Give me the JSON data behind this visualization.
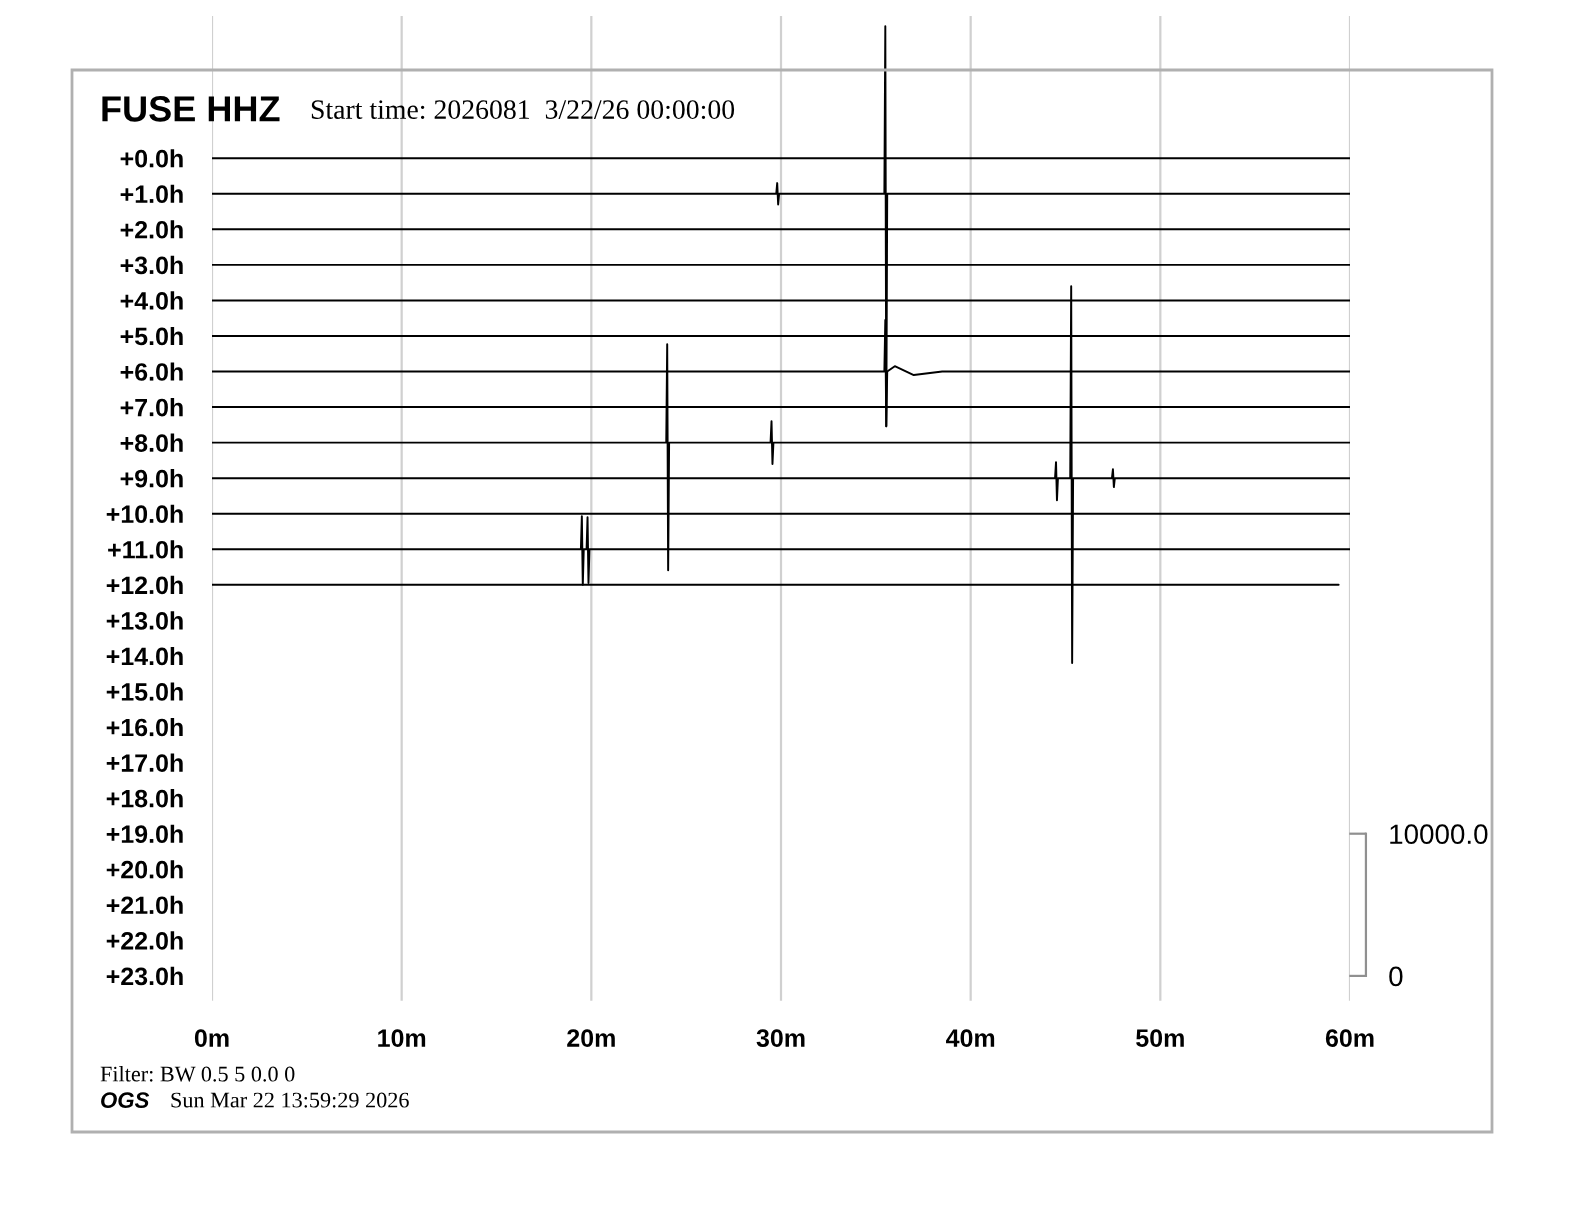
{
  "chart_data": {
    "type": "line",
    "title": "FUSE HHZ",
    "subtitle": "Start time: 2026081  3/22/26 00:00:00",
    "annotations": [
      "Filter: BW 0.5 5 0.0 0",
      "OGS",
      "Sun Mar 22 13:59:29 2026"
    ],
    "xlim": [
      0,
      60
    ],
    "xticks": [
      {
        "value": 0,
        "label": "0m"
      },
      {
        "value": 10,
        "label": "10m"
      },
      {
        "value": 20,
        "label": "20m"
      },
      {
        "value": 30,
        "label": "30m"
      },
      {
        "value": 40,
        "label": "40m"
      },
      {
        "value": 50,
        "label": "50m"
      },
      {
        "value": 60,
        "label": "60m"
      }
    ],
    "ylim": [
      23.7,
      -4.0
    ],
    "yticks": [
      {
        "value": 0,
        "label": "+0.0h"
      },
      {
        "value": 1,
        "label": "+1.0h"
      },
      {
        "value": 2,
        "label": "+2.0h"
      },
      {
        "value": 3,
        "label": "+3.0h"
      },
      {
        "value": 4,
        "label": "+4.0h"
      },
      {
        "value": 5,
        "label": "+5.0h"
      },
      {
        "value": 6,
        "label": "+6.0h"
      },
      {
        "value": 7,
        "label": "+7.0h"
      },
      {
        "value": 8,
        "label": "+8.0h"
      },
      {
        "value": 9,
        "label": "+9.0h"
      },
      {
        "value": 10,
        "label": "+10.0h"
      },
      {
        "value": 11,
        "label": "+11.0h"
      },
      {
        "value": 12,
        "label": "+12.0h"
      },
      {
        "value": 13,
        "label": "+13.0h"
      },
      {
        "value": 14,
        "label": "+14.0h"
      },
      {
        "value": 15,
        "label": "+15.0h"
      },
      {
        "value": 16,
        "label": "+16.0h"
      },
      {
        "value": 17,
        "label": "+17.0h"
      },
      {
        "value": 18,
        "label": "+18.0h"
      },
      {
        "value": 19,
        "label": "+19.0h"
      },
      {
        "value": 20,
        "label": "+20.0h"
      },
      {
        "value": 21,
        "label": "+21.0h"
      },
      {
        "value": 22,
        "label": "+22.0h"
      },
      {
        "value": 23,
        "label": "+23.0h"
      }
    ],
    "y2lim": [
      -1750,
      67500
    ],
    "y2ticks": [
      0,
      {
        "value": 10000,
        "label": "10000.0"
      }
    ],
    "grid": "x",
    "series": [
      {
        "color": "#000000",
        "x": [
          0,
          60
        ],
        "values": [
          0,
          0
        ]
      },
      {
        "color": "#000000",
        "x": [
          0,
          29.75,
          29.8,
          29.85,
          29.9,
          35.45,
          35.5,
          35.55,
          35.6,
          60
        ],
        "values": [
          1,
          1,
          0.7,
          1.3,
          1,
          1,
          -3.71,
          7.54,
          1,
          1
        ]
      },
      {
        "color": "#000000",
        "x": [
          0,
          60
        ],
        "values": [
          2,
          2
        ]
      },
      {
        "color": "#000000",
        "x": [
          0,
          60
        ],
        "values": [
          3,
          3
        ]
      },
      {
        "color": "#000000",
        "x": [
          0,
          60
        ],
        "values": [
          4,
          4
        ]
      },
      {
        "color": "#000000",
        "x": [
          0,
          60
        ],
        "values": [
          5,
          5
        ]
      },
      {
        "color": "#000000",
        "x": [
          0,
          35.45,
          35.5,
          35.55,
          35.6,
          36,
          37,
          38.5,
          60
        ],
        "values": [
          6,
          6,
          4.55,
          7.54,
          6,
          5.85,
          6.1,
          6,
          6
        ]
      },
      {
        "color": "#000000",
        "x": [
          0,
          60
        ],
        "values": [
          7,
          7
        ]
      },
      {
        "color": "#000000",
        "x": [
          0,
          23.95,
          24.0,
          24.05,
          24.1,
          29.45,
          29.5,
          29.55,
          29.6,
          60
        ],
        "values": [
          8,
          8,
          5.23,
          11.59,
          8,
          8,
          7.4,
          8.6,
          8,
          8
        ]
      },
      {
        "color": "#000000",
        "x": [
          0,
          44.45,
          44.5,
          44.55,
          44.6,
          45.25,
          45.3,
          45.35,
          45.4,
          47.45,
          47.5,
          47.55,
          47.6,
          60
        ],
        "values": [
          9,
          9,
          8.55,
          9.62,
          9,
          9,
          3.6,
          14.2,
          9,
          9,
          8.75,
          9.25,
          9,
          9
        ]
      },
      {
        "color": "#000000",
        "x": [
          0,
          60
        ],
        "values": [
          10,
          10
        ]
      },
      {
        "color": "#000000",
        "x": [
          0,
          19.45,
          19.5,
          19.55,
          19.6,
          19.75,
          19.8,
          19.85,
          19.9,
          60
        ],
        "values": [
          11,
          11,
          10.07,
          12.0,
          11,
          11,
          10.1,
          11.95,
          11,
          11
        ]
      },
      {
        "color": "#000000",
        "x": [
          0,
          59.4
        ],
        "values": [
          12,
          12
        ]
      }
    ]
  }
}
